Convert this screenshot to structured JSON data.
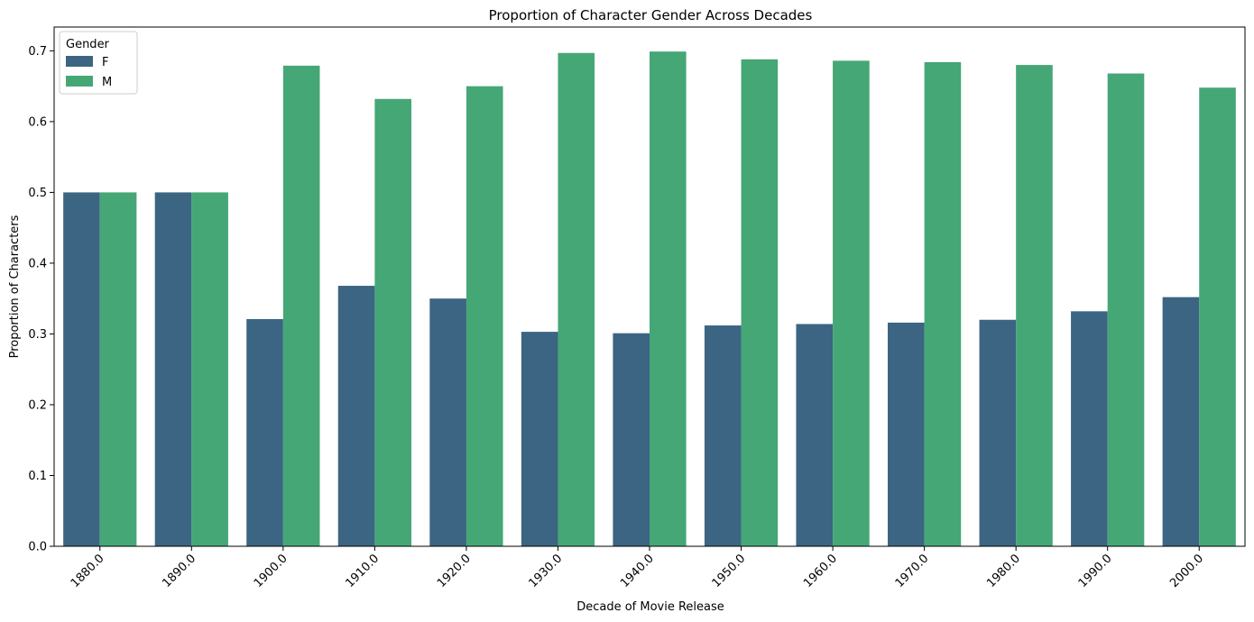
{
  "chart_data": {
    "type": "bar",
    "title": "Proportion of Character Gender Across Decades",
    "xlabel": "Decade of Movie Release",
    "ylabel": "Proportion of Characters",
    "categories": [
      "1880.0",
      "1890.0",
      "1900.0",
      "1910.0",
      "1920.0",
      "1930.0",
      "1940.0",
      "1950.0",
      "1960.0",
      "1970.0",
      "1980.0",
      "1990.0",
      "2000.0"
    ],
    "series": [
      {
        "name": "F",
        "color": "#3b6582",
        "values": [
          0.5,
          0.5,
          0.321,
          0.368,
          0.35,
          0.303,
          0.301,
          0.312,
          0.314,
          0.316,
          0.32,
          0.332,
          0.352
        ]
      },
      {
        "name": "M",
        "color": "#45a776",
        "values": [
          0.5,
          0.5,
          0.679,
          0.632,
          0.65,
          0.697,
          0.699,
          0.688,
          0.686,
          0.684,
          0.68,
          0.668,
          0.648
        ]
      }
    ],
    "ylim": [
      0,
      0.7336
    ],
    "yticks": [
      "0.0",
      "0.1",
      "0.2",
      "0.3",
      "0.4",
      "0.5",
      "0.6",
      "0.7"
    ],
    "x_tick_rotation": 45,
    "legend": {
      "title": "Gender",
      "placement": "top-left"
    },
    "grid": false
  }
}
